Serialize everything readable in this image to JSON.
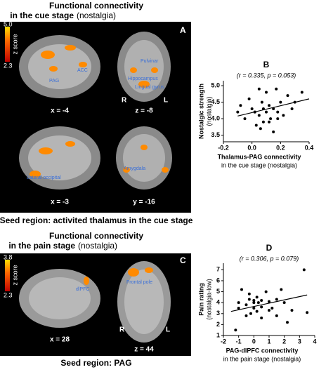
{
  "figure": {
    "top": {
      "title": "Functional connectivity",
      "subtitle": "in the cue stage",
      "condition": "(nostalgia)",
      "panel": "A",
      "scale_max": "5.0",
      "scale_min": "2.3",
      "scale_label": "z score",
      "coords": [
        "x = -4",
        "z = -8",
        "x = -3",
        "y = -16"
      ],
      "regions": [
        "ACC",
        "PAG",
        "Pulvinar",
        "Hippocampus",
        "Lingual gyrus",
        "Lateral occipital",
        "Amygdala"
      ],
      "side_right": "R",
      "side_left": "L",
      "seed": "Seed region: activited thalamus in the cue stage"
    },
    "bottom": {
      "title": "Functional connectivity",
      "subtitle": "in the pain stage",
      "condition": "(nostalgia)",
      "panel": "C",
      "scale_max": "3.8",
      "scale_min": "2.3",
      "scale_label": "z score",
      "coords": [
        "x = 28",
        "z = 44"
      ],
      "regions": [
        "dlPFC",
        "Frontal pole"
      ],
      "side_right": "R",
      "side_left": "L",
      "seed": "Seed region: PAG"
    }
  },
  "chart_data": [
    {
      "type": "scatter",
      "panel": "B",
      "annotation": "(r = 0.335, p = 0.053)",
      "x_label": [
        "Thalamus-PAG connectivity",
        "in the cue stage (nostalgia)"
      ],
      "y_label": [
        "Nostalgic strength",
        "(nostalgia)"
      ],
      "x": [
        -0.1,
        -0.05,
        -0.02,
        0,
        0.02,
        0.03,
        0.05,
        0.05,
        0.07,
        0.08,
        0.1,
        0.1,
        0.12,
        0.13,
        0.15,
        0.15,
        0.17,
        0.18,
        0.2,
        0.22,
        0.25,
        0.28,
        0.3,
        0.35,
        0.02,
        0.08,
        0.12,
        -0.08,
        0.18,
        0.06
      ],
      "y": [
        4.2,
        4.0,
        4.6,
        4.3,
        4.2,
        3.8,
        4.9,
        4.1,
        4.5,
        3.9,
        4.8,
        4.2,
        4.4,
        4.0,
        4.3,
        3.6,
        4.9,
        4.2,
        4.5,
        4.1,
        4.7,
        4.3,
        4.5,
        4.8,
        4.2,
        4.3,
        3.9,
        4.4,
        4.0,
        3.7
      ],
      "trendline": {
        "x": [
          -0.1,
          0.4
        ],
        "y": [
          4.08,
          4.6
        ]
      },
      "color": "#000000",
      "xlim": [
        -0.2,
        0.4
      ],
      "ylim": [
        3.3,
        5.15
      ],
      "xticks": [
        -0.2,
        {
          "value": 0,
          "label": "0.0"
        },
        0.2,
        0.4
      ],
      "yticks": [
        3.5,
        {
          "value": 4,
          "label": "4.0"
        },
        4.5,
        {
          "value": 5,
          "label": "5.0"
        }
      ]
    },
    {
      "type": "scatter",
      "panel": "D",
      "annotation": "(r = 0.306, p = 0.079)",
      "x_label": [
        "PAG-dlPFC connectivity",
        "in the pain stage (nostalgia)"
      ],
      "y_label": [
        "Pain rating",
        "(nostalgia-low)"
      ],
      "x": [
        -1.2,
        -1,
        -0.8,
        -0.5,
        -0.3,
        -0.2,
        0,
        0,
        0.2,
        0.3,
        0.5,
        0.5,
        0.8,
        1,
        1,
        1.2,
        1.5,
        1.8,
        2,
        2.2,
        2.5,
        3.3,
        -0.5,
        0,
        0.5,
        -1,
        1.5,
        0.2,
        -0.3,
        3.5
      ],
      "y": [
        1.5,
        3.5,
        5.2,
        3.8,
        4.3,
        3,
        4.2,
        3.5,
        4.5,
        4,
        4.2,
        2.6,
        5,
        3.3,
        4.1,
        3.5,
        2.8,
        5.2,
        4,
        2.2,
        3.3,
        7,
        2.8,
        4,
        3.6,
        4,
        4.3,
        3.2,
        4.8,
        3.1
      ],
      "trendline": {
        "x": [
          -1.5,
          3.5
        ],
        "y": [
          3.2,
          4.7
        ]
      },
      "color": "#000000",
      "xlim": [
        -2,
        4
      ],
      "ylim": [
        1,
        7.6
      ],
      "xticks": [
        -2,
        -1,
        0,
        1,
        2,
        3,
        4
      ],
      "yticks": [
        1,
        2,
        3,
        4,
        5,
        6,
        7
      ]
    }
  ]
}
